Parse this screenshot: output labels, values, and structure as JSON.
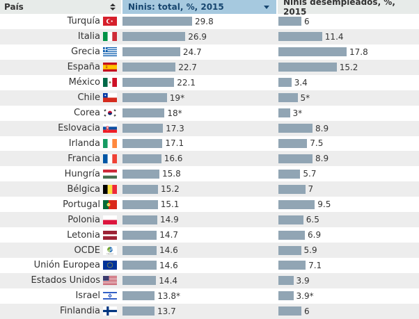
{
  "header": {
    "country": "País",
    "col_total": "Ninis: total, %, 2015",
    "col_unemployed": "Ninis desempleados, %, 2015"
  },
  "icons": {
    "sort": "sort-arrows-icon",
    "dropdown": "dropdown-arrow-icon"
  },
  "colors": {
    "selected_header_bg": "#a6c9df",
    "selected_header_text": "#17466f",
    "header_bg": "#e7ebe9",
    "header_text": "#333333",
    "bar": "#91a5b4",
    "row_bg": "#ffffff",
    "row_alt_bg": "#ededed",
    "value_text": "#333333"
  },
  "chart_data": {
    "type": "bar",
    "orientation": "horizontal",
    "categories": [
      "Turquía",
      "Italia",
      "Grecia",
      "España",
      "México",
      "Chile",
      "Corea",
      "Eslovacia",
      "Irlanda",
      "Francia",
      "Hungría",
      "Bélgica",
      "Portugal",
      "Polonia",
      "Letonia",
      "OCDE",
      "Unión Europea",
      "Estados Unidos",
      "Israel",
      "Finlandia"
    ],
    "series": [
      {
        "name": "Ninis: total, %, 2015",
        "values": [
          29.8,
          26.9,
          24.7,
          22.7,
          22.1,
          19,
          18,
          17.3,
          17.1,
          16.6,
          15.8,
          15.2,
          15.1,
          14.9,
          14.7,
          14.6,
          14.6,
          14.4,
          13.8,
          13.7
        ],
        "labels": [
          "29.8",
          "26.9",
          "24.7",
          "22.7",
          "22.1",
          "19*",
          "18*",
          "17.3",
          "17.1",
          "16.6",
          "15.8",
          "15.2",
          "15.1",
          "14.9",
          "14.7",
          "14.6",
          "14.6",
          "14.4",
          "13.8*",
          "13.7"
        ]
      },
      {
        "name": "Ninis desempleados, %, 2015",
        "values": [
          6,
          11.4,
          17.8,
          15.2,
          3.4,
          5,
          3,
          8.9,
          7.5,
          8.9,
          5.7,
          7,
          9.5,
          6.5,
          6.9,
          5.9,
          7.1,
          3.9,
          3.9,
          6
        ],
        "labels": [
          "6",
          "11.4",
          "17.8",
          "15.2",
          "3.4",
          "5*",
          "3*",
          "8.9",
          "7.5",
          "8.9",
          "5.7",
          "7",
          "9.5",
          "6.5",
          "6.9",
          "5.9",
          "7.1",
          "3.9",
          "3.9*",
          "6"
        ]
      }
    ],
    "title": "",
    "xlabel": "",
    "ylabel": "",
    "legend_position": "column-headers",
    "grid": false,
    "sorted_by": "Ninis: total, %, 2015 descending"
  },
  "rows": [
    {
      "country": "Turquía",
      "flag": "tr",
      "total_label": "29.8",
      "total": 29.8,
      "unemp_label": "6",
      "unemp": 6
    },
    {
      "country": "Italia",
      "flag": "it",
      "total_label": "26.9",
      "total": 26.9,
      "unemp_label": "11.4",
      "unemp": 11.4
    },
    {
      "country": "Grecia",
      "flag": "gr",
      "total_label": "24.7",
      "total": 24.7,
      "unemp_label": "17.8",
      "unemp": 17.8
    },
    {
      "country": "España",
      "flag": "es",
      "total_label": "22.7",
      "total": 22.7,
      "unemp_label": "15.2",
      "unemp": 15.2
    },
    {
      "country": "México",
      "flag": "mx",
      "total_label": "22.1",
      "total": 22.1,
      "unemp_label": "3.4",
      "unemp": 3.4
    },
    {
      "country": "Chile",
      "flag": "cl",
      "total_label": "19*",
      "total": 19,
      "unemp_label": "5*",
      "unemp": 5
    },
    {
      "country": "Corea",
      "flag": "kr",
      "total_label": "18*",
      "total": 18,
      "unemp_label": "3*",
      "unemp": 3
    },
    {
      "country": "Eslovacia",
      "flag": "sk",
      "total_label": "17.3",
      "total": 17.3,
      "unemp_label": "8.9",
      "unemp": 8.9
    },
    {
      "country": "Irlanda",
      "flag": "ie",
      "total_label": "17.1",
      "total": 17.1,
      "unemp_label": "7.5",
      "unemp": 7.5
    },
    {
      "country": "Francia",
      "flag": "fr",
      "total_label": "16.6",
      "total": 16.6,
      "unemp_label": "8.9",
      "unemp": 8.9
    },
    {
      "country": "Hungría",
      "flag": "hu",
      "total_label": "15.8",
      "total": 15.8,
      "unemp_label": "5.7",
      "unemp": 5.7
    },
    {
      "country": "Bélgica",
      "flag": "be",
      "total_label": "15.2",
      "total": 15.2,
      "unemp_label": "7",
      "unemp": 7
    },
    {
      "country": "Portugal",
      "flag": "pt",
      "total_label": "15.1",
      "total": 15.1,
      "unemp_label": "9.5",
      "unemp": 9.5
    },
    {
      "country": "Polonia",
      "flag": "pl",
      "total_label": "14.9",
      "total": 14.9,
      "unemp_label": "6.5",
      "unemp": 6.5
    },
    {
      "country": "Letonia",
      "flag": "lv",
      "total_label": "14.7",
      "total": 14.7,
      "unemp_label": "6.9",
      "unemp": 6.9
    },
    {
      "country": "OCDE",
      "flag": "oecd",
      "total_label": "14.6",
      "total": 14.6,
      "unemp_label": "5.9",
      "unemp": 5.9
    },
    {
      "country": "Unión Europea",
      "flag": "eu",
      "total_label": "14.6",
      "total": 14.6,
      "unemp_label": "7.1",
      "unemp": 7.1
    },
    {
      "country": "Estados Unidos",
      "flag": "us",
      "total_label": "14.4",
      "total": 14.4,
      "unemp_label": "3.9",
      "unemp": 3.9
    },
    {
      "country": "Israel",
      "flag": "il",
      "total_label": "13.8*",
      "total": 13.8,
      "unemp_label": "3.9*",
      "unemp": 3.9
    },
    {
      "country": "Finlandia",
      "flag": "fi",
      "total_label": "13.7",
      "total": 13.7,
      "unemp_label": "6",
      "unemp": 6
    }
  ]
}
